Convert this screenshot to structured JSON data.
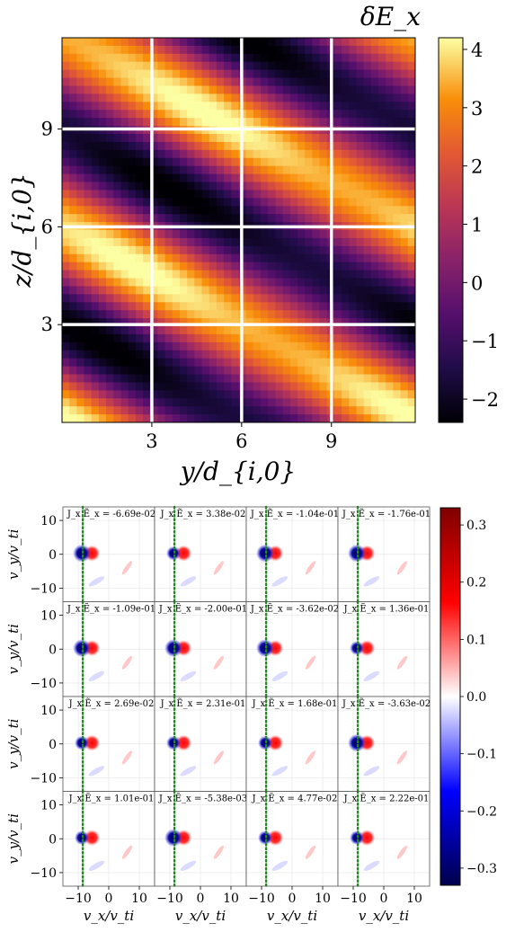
{
  "chart_data": [
    {
      "type": "heatmap",
      "title": "δE_x",
      "xlabel": "y/d_{i,0}",
      "ylabel": "z/d_{i,0}",
      "xlim": [
        0,
        11.8
      ],
      "ylim": [
        0,
        11.8
      ],
      "xticks": [
        "3",
        "6",
        "9"
      ],
      "yticks": [
        "3",
        "6",
        "9"
      ],
      "xtick_values": [
        3,
        6,
        9
      ],
      "ytick_values": [
        3,
        6,
        9
      ],
      "grid": true,
      "grid_color": "#ffffff",
      "colormap": "inferno",
      "colorbar": {
        "range": [
          -2.4,
          4.2
        ],
        "ticks": [
          "−2",
          "−1",
          "0",
          "1",
          "2",
          "3",
          "4"
        ],
        "tick_values": [
          -2,
          -1,
          0,
          1,
          2,
          3,
          4
        ]
      },
      "pattern": "diagonal stripes rising to the left; bright band passing through (0,6) and (11.8,0), minimum ≈ -2.4, maximum ≈ 4.2"
    },
    {
      "type": "heatmap",
      "layout": "4x4 grid of velocity-space panels",
      "xlabel": "v_x/v_ti",
      "ylabel": "v_y/v_ti",
      "xlim": [
        -15,
        15
      ],
      "ylim": [
        -14,
        14
      ],
      "xticks": [
        "−10",
        "0",
        "10"
      ],
      "yticks": [
        "10",
        "0",
        "−10"
      ],
      "xtick_values": [
        -10,
        0,
        10
      ],
      "ytick_values": [
        10,
        0,
        -10
      ],
      "grid": true,
      "colormap": "seismic",
      "colorbar": {
        "range": [
          -0.33,
          0.33
        ],
        "ticks": [
          "0.3",
          "0.2",
          "0.1",
          "0.0",
          "−0.1",
          "−0.2",
          "−0.3"
        ],
        "tick_values": [
          0.3,
          0.2,
          0.1,
          0.0,
          -0.1,
          -0.2,
          -0.3
        ]
      },
      "reference_line": {
        "vx": -8.5,
        "style": "dotted",
        "color": "#1a8a1a"
      },
      "annotation_prefix": "J_x Ẽ_x = ",
      "panels": [
        [
          "-6.69e-02",
          "3.38e-02",
          "-1.04e-01",
          "-1.76e-01"
        ],
        [
          "-1.09e-01",
          "-2.00e-01",
          "-3.62e-02",
          "1.36e-01"
        ],
        [
          "2.69e-02",
          "2.31e-01",
          "1.68e-01",
          "-3.63e-02"
        ],
        [
          "1.01e-01",
          "-5.38e-03",
          "4.77e-02",
          "2.22e-01"
        ]
      ]
    }
  ]
}
